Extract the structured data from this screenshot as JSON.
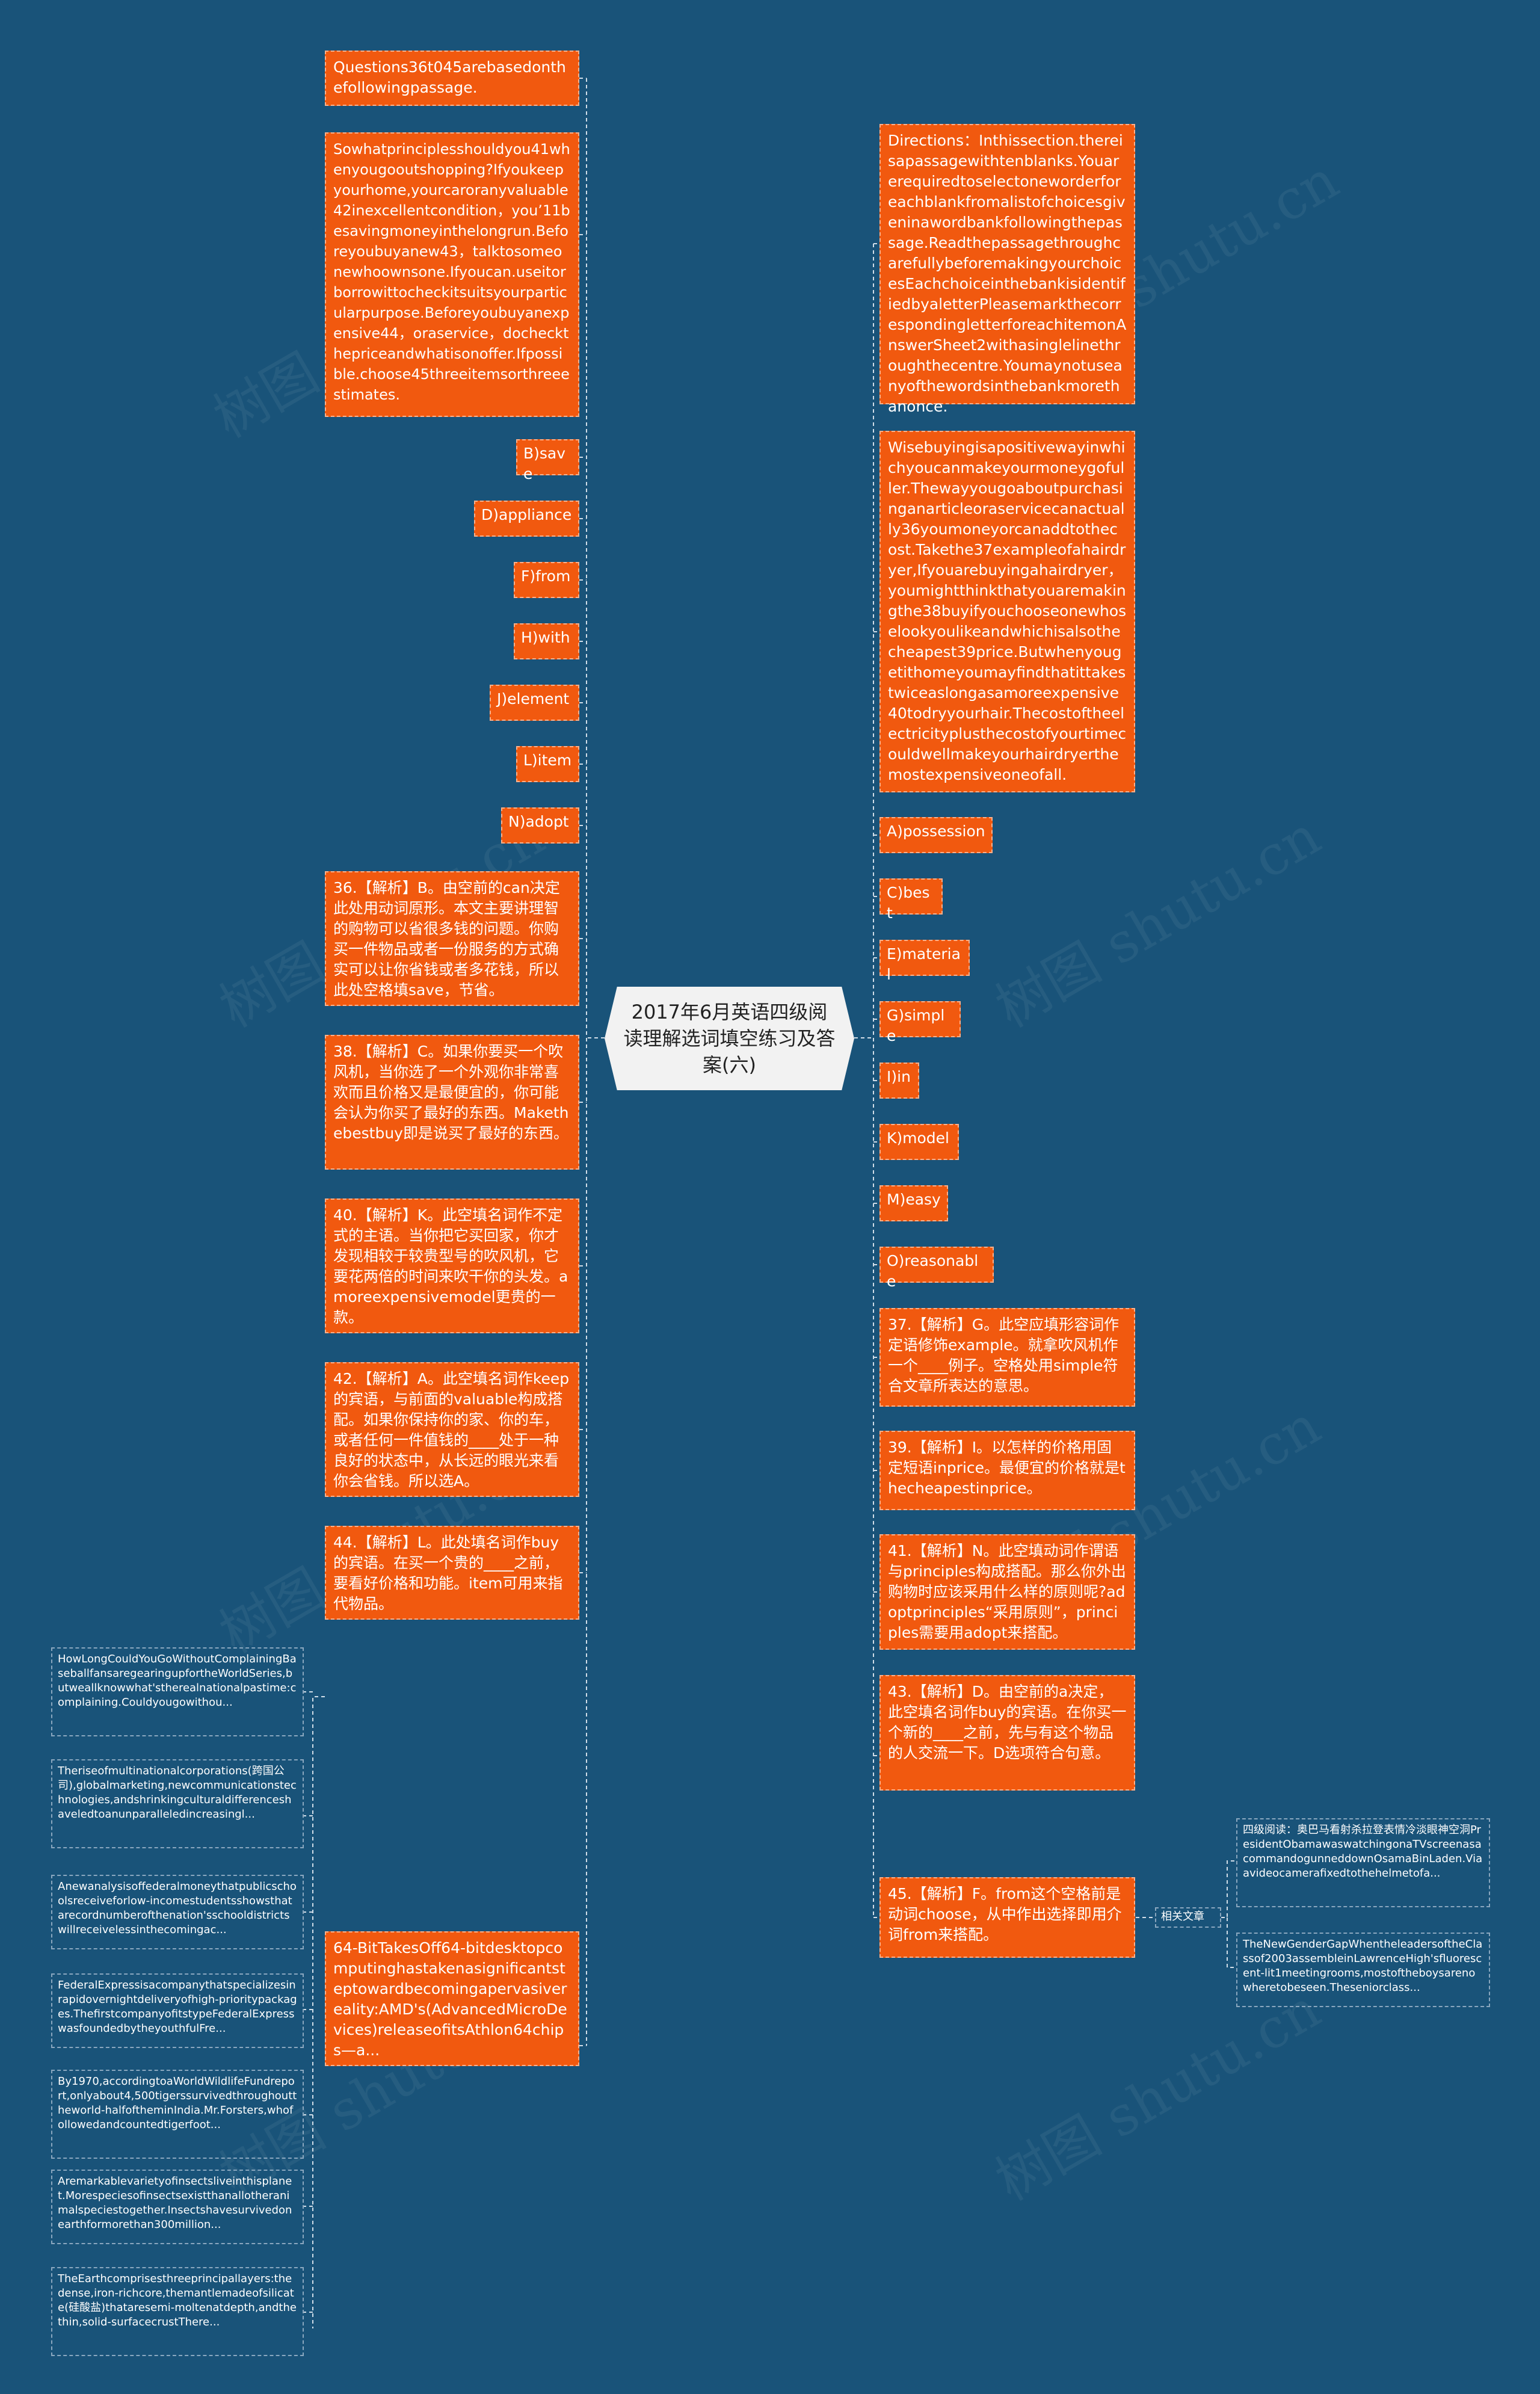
{
  "watermark": "树图 shutu.cn",
  "root_title": "2017年6月英语四级阅读理解选词填空练习及答案(六)",
  "related_label": "相关文章",
  "left_nodes": [
    "Questions36t045arebasedonthefollowingpassage.",
    "Sowhatprinciplesshouldyou41whenyougooutshopping?Ifyoukeepyourhome,yourcaroranyvaluable42inexcellentcondition，you’11besavingmoneyinthelongrun.Beforeyoubuyanew43，talktosomeonewhoownsone.Ifyoucan.useitorborrowittocheckitsuitsyourparticularpurpose.Beforeyoubuyanexpensive44，oraservice，docheckthepriceandwhatisonoffer.Ifpossible.choose45threeitemsorthreeestimates.",
    "B)save",
    "D)appliance",
    "F)from",
    "H)with",
    "J)element",
    "L)item",
    "N)adopt",
    "36.【解析】B。由空前的can决定此处用动词原形。本文主要讲理智的购物可以省很多钱的问题。你购买一件物品或者一份服务的方式确实可以让你省钱或者多花钱，所以此处空格填save，节省。",
    "38.【解析】C。如果你要买一个吹风机，当你选了一个外观你非常喜欢而且价格又是最便宜的，你可能会认为你买了最好的东西。Makethebestbuy即是说买了最好的东西。",
    "40.【解析】K。此空填名词作不定式的主语。当你把它买回家，你才发现相较于较贵型号的吹风机，它要花两倍的时间来吹干你的头发。amoreexpensivemodel更贵的一款。",
    "42.【解析】A。此空填名词作keep的宾语，与前面的valuable构成搭配。如果你保持你的家、你的车，或者任何一件值钱的____处于一种良好的状态中，从长远的眼光来看你会省钱。所以选A。",
    "44.【解析】L。此处填名词作buy的宾语。在买一个贵的____之前，要看好价格和功能。item可用来指代物品。",
    "64-BitTakesOff64-bitdesktopcomputinghastakenasignificantsteptowardbecomingapervasivereality:AMD's(AdvancedMicroDevices)releaseofitsAthlon64chips—a..."
  ],
  "right_nodes": [
    "Directions：Inthissection.thereisapassagewithtenblanks.Youarerequiredtoselectoneworderforeachblankfromalistofchoicesgiveninawordbankfollowingthepassage.ReadthepassagethroughcarefullybeforemakingyourchoicesEachchoiceinthebankisidentifiedbyaletterPleasemarkthecorrespondingletterforeachitemonAnswerSheet2withasinglelinethroughthecentre.Youmaynotuseanyofthewordsinthebankmorethanonce.",
    "Wisebuyingisapositivewayinwhichyoucanmakeyourmoneygofuller.Thewayyougoaboutpurchasinganarticleoraservicecanactually36youmoneyorcanaddtothecost.Takethe37exampleofahairdryer,Ifyouarebuyingahairdryer，youmightthinkthatyouaremakingthe38buyifyouchooseonewhoselookyoulikeandwhichisalsothecheapest39price.Butwhenyougetithomeyoumayfindthatittakestwiceaslongasamoreexpensive40todryyourhair.Thecostoftheelectricityplusthecostofyourtimecouldwellmakeyourhairdryerthemostexpensiveoneofall.",
    "A)possession",
    "C)best",
    "E)material",
    "G)simple",
    "I)in",
    "K)model",
    "M)easy",
    "O)reasonable",
    "37.【解析】G。此空应填形容词作定语修饰example。就拿吹风机作一个____例子。空格处用simple符合文章所表达的意思。",
    "39.【解析】I。以怎样的价格用固定短语inprice。最便宜的价格就是thecheapestinprice。",
    "41.【解析】N。此空填动词作谓语与principles构成搭配。那么你外出购物时应该采用什么样的原则呢?adoptprinciples“采用原则”，principles需要用adopt来搭配。",
    "43.【解析】D。由空前的a决定，此空填名词作buy的宾语。在你买一个新的____之前，先与有这个物品的人交流一下。D选项符合句意。",
    "45.【解析】F。from这个空格前是动词choose，从中作出选择即用介词from来搭配。"
  ],
  "left_leaves": [
    "HowLongCouldYouGoWithoutComplainingBaseballfansaregearingupfortheWorldSeries,butweallknowwhat'stherealnationalpastime:complaining.Couldyougowithou...",
    "Theriseofmultinationalcorporations(跨国公司),globalmarketing,newcommunicationstechnologies,andshrinkingculturaldifferenceshaveledtoanunparalleledincreasingl...",
    "Anewanalysisoffederalmoneythatpublicschoolsreceiveforlow-incomestudentsshowsthatarecordnumberofthenation'sschooldistrictswillreceivelessinthecomingac...",
    "FederalExpressisacompanythatspecializesinrapidovernightdeliveryofhigh-prioritypackages.ThefirstcompanyofitstypeFederalExpresswasfoundedbytheyouthfulFre...",
    "By1970,accordingtoaWorldWildlifeFundreport,onlyabout4,500tigerssurvivedthroughouttheworld-halfoftheminIndia.Mr.Forsters,whofollowedandcountedtigerfoot...",
    "Aremarkablevarietyofinsectsliveinthisplanet.Morespeciesofinsectsexistthanallotheranimalspeciestogether.Insectshavesurvivedonearthformorethan300million...",
    "TheEarthcomprisesthreeprincipallayers:thedense,iron-richcore,themantlemadeofsilicate(硅酸盐)thataresemi-moltenatdepth,andthethin,solid-surfacecrustThere..."
  ],
  "right_leaves": [
    "四级阅读：奥巴马看射杀拉登表情冷淡眼神空洞PresidentObamawaswatchingonaTVscreenasacommandogunneddownOsamaBinLaden.Viaavideocamerafixedtothehelmetofa...",
    "TheNewGenderGapWhentheleadersoftheClassof2003assembleinLawrenceHigh'sfluorescent-lit1meetingrooms,mostoftheboysarenowheretobeseen.Theseniorclass..."
  ]
}
